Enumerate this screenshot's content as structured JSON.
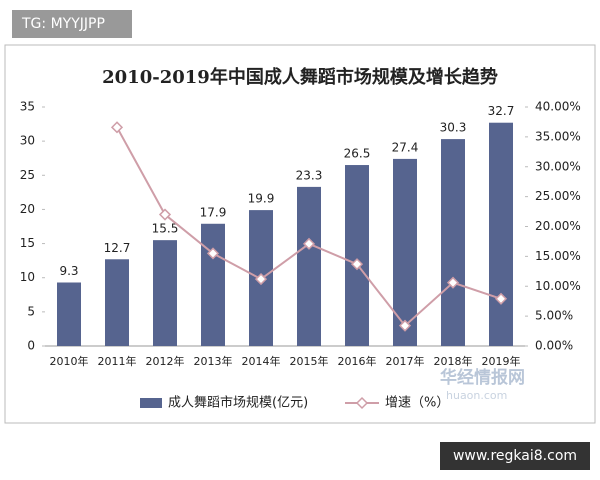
{
  "overlay": {
    "top_label": "TG: MYYJJPP",
    "bottom_label": "www.regkai8.com",
    "logo_title": "华经情报网",
    "logo_url": "huaon.com"
  },
  "chart_data": {
    "type": "bar",
    "title": "2010-2019年中国成人舞蹈市场规模及增长趋势",
    "categories": [
      "2010年",
      "2011年",
      "2012年",
      "2013年",
      "2014年",
      "2015年",
      "2016年",
      "2017年",
      "2018年",
      "2019年"
    ],
    "series": [
      {
        "name": "成人舞蹈市场规模(亿元)",
        "type": "bar",
        "color": "#56648f",
        "values": [
          9.3,
          12.7,
          15.5,
          17.9,
          19.9,
          23.3,
          26.5,
          27.4,
          30.3,
          32.7
        ]
      },
      {
        "name": "增速（%）",
        "type": "line",
        "axis": "y2",
        "color": "#cf9ea8",
        "values": [
          null,
          36.6,
          22.0,
          15.5,
          11.2,
          17.1,
          13.7,
          3.4,
          10.6,
          7.9
        ]
      }
    ],
    "ylim": [
      0,
      35
    ],
    "yticks": [
      0,
      5,
      10,
      15,
      20,
      25,
      30,
      35
    ],
    "y2lim": [
      0,
      40
    ],
    "y2ticks": [
      {
        "value": 0,
        "label": "0.00%"
      },
      {
        "value": 5,
        "label": "5.00%"
      },
      {
        "value": 10,
        "label": "10.00%"
      },
      {
        "value": 15,
        "label": "15.00%"
      },
      {
        "value": 20,
        "label": "20.00%"
      },
      {
        "value": 25,
        "label": "25.00%"
      },
      {
        "value": 30,
        "label": "30.00%"
      },
      {
        "value": 35,
        "label": "35.00%"
      },
      {
        "value": 40,
        "label": "40.00%"
      }
    ],
    "grid": false,
    "legend": "bottom"
  }
}
